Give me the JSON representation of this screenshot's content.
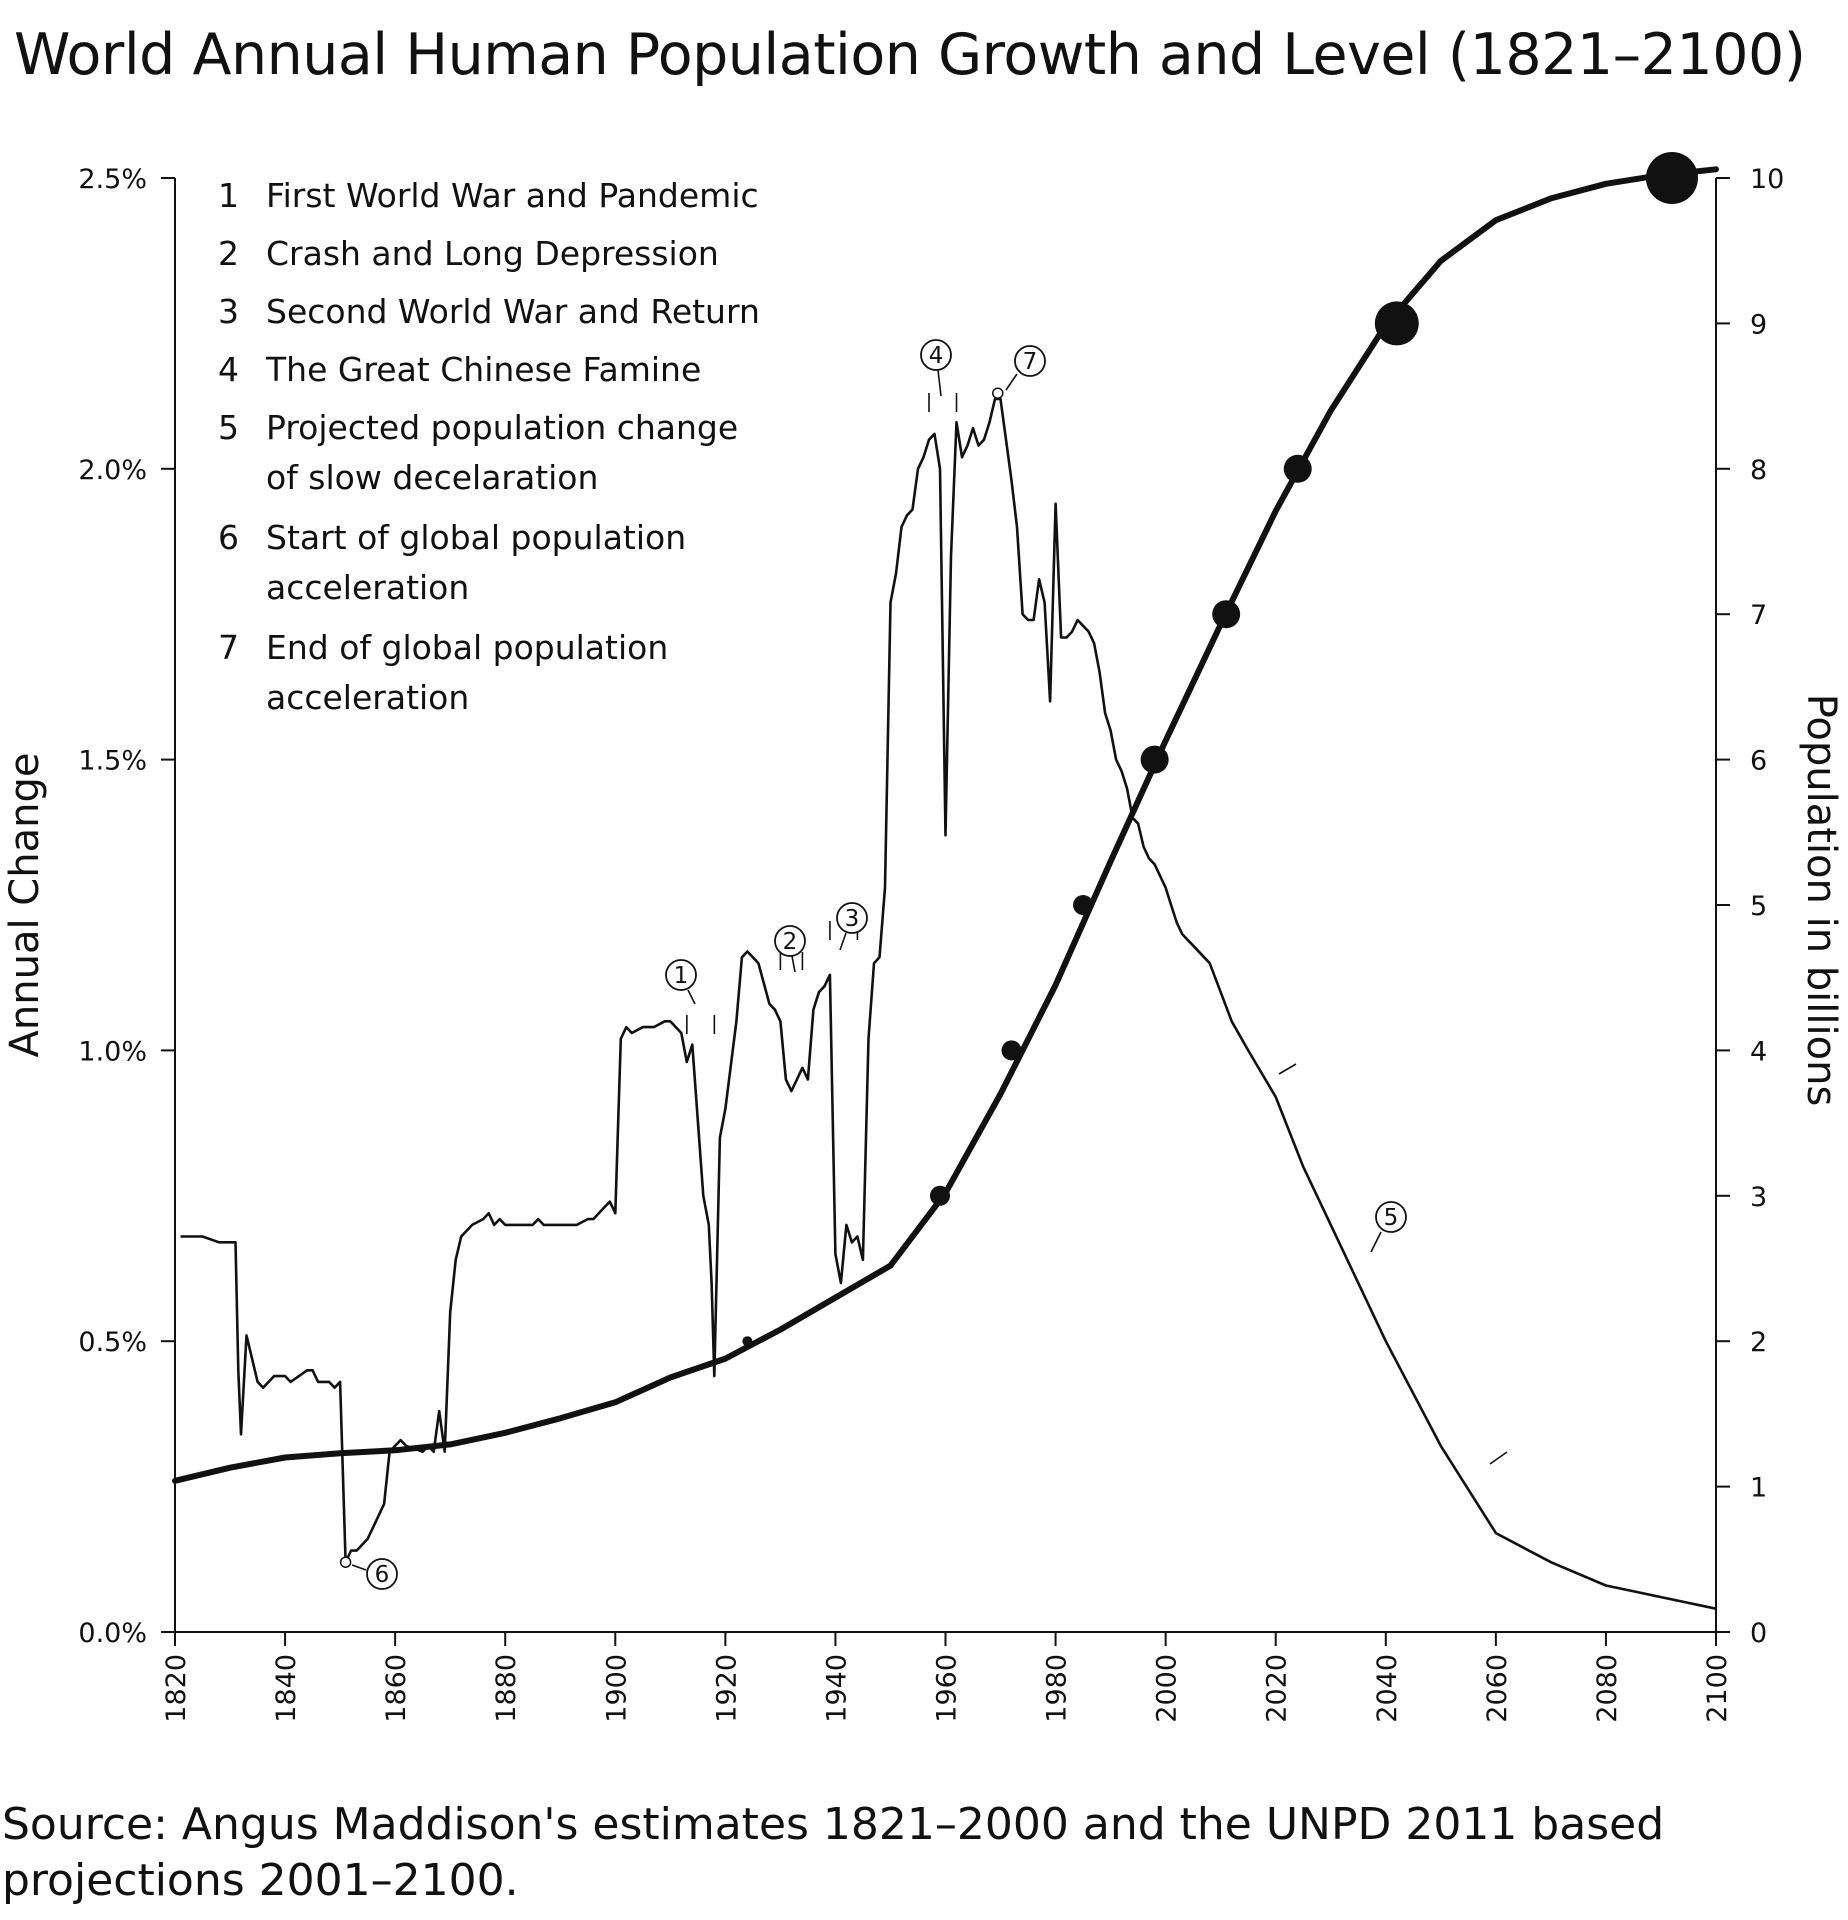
{
  "title": "World Annual Human Population Growth and Level (1821–2100)",
  "source_note": "Source: Angus Maddison's estimates 1821–2000 and the UNPD 2011 based projections 2001–2100.",
  "legend": [
    {
      "num": "1",
      "lines": [
        "First World War and Pandemic"
      ]
    },
    {
      "num": "2",
      "lines": [
        "Crash and Long Depression"
      ]
    },
    {
      "num": "3",
      "lines": [
        "Second World War and Return"
      ]
    },
    {
      "num": "4",
      "lines": [
        "The Great Chinese Famine"
      ]
    },
    {
      "num": "5",
      "lines": [
        "Projected population change",
        "of slow decelaration"
      ]
    },
    {
      "num": "6",
      "lines": [
        "Start of global population",
        "acceleration"
      ]
    },
    {
      "num": "7",
      "lines": [
        "End of global population",
        "acceleration"
      ]
    }
  ],
  "chart_data": {
    "type": "line",
    "title": "World Annual Human Population Growth and Level (1821–2100)",
    "xlabel": "",
    "ylabel": "Annual Change",
    "y2label": "Population in billions",
    "xlim": [
      1820,
      2100
    ],
    "ylim": [
      0,
      2.5
    ],
    "y2lim": [
      0,
      10
    ],
    "grid": false,
    "x_ticks": [
      "1820",
      "1840",
      "1860",
      "1880",
      "1900",
      "1920",
      "1940",
      "1960",
      "1980",
      "2000",
      "2020",
      "2040",
      "2060",
      "2080",
      "2100"
    ],
    "y_ticks": [
      "0.0%",
      "0.5%",
      "1.0%",
      "1.5%",
      "2.0%",
      "2.5%"
    ],
    "y2_ticks": [
      "0",
      "1",
      "2",
      "3",
      "4",
      "5",
      "6",
      "7",
      "8",
      "9",
      "10"
    ],
    "series": [
      {
        "axis": "left",
        "x": [
          1821,
          1824,
          1825,
          1828,
          1830,
          1830.5,
          1831,
          1831.5,
          1832,
          1833,
          1835,
          1836,
          1838,
          1839,
          1840,
          1841,
          1844,
          1845,
          1846,
          1847,
          1848,
          1849,
          1850,
          1851,
          1852,
          1853,
          1855,
          1857,
          1858,
          1859,
          1860,
          1861,
          1862,
          1865,
          1866,
          1867,
          1868,
          1869,
          1870,
          1871,
          1872,
          1874,
          1876,
          1877,
          1878,
          1879,
          1880,
          1885,
          1886,
          1887,
          1890,
          1893,
          1895,
          1896,
          1897,
          1898,
          1899,
          1900,
          1901,
          1902,
          1903,
          1905,
          1907,
          1909,
          1910,
          1911,
          1912,
          1913,
          1914,
          1916,
          1917,
          1917.5,
          1918,
          1919,
          1920,
          1922,
          1923,
          1924,
          1926,
          1928,
          1929,
          1930,
          1931,
          1932,
          1933,
          1934,
          1935,
          1936,
          1937,
          1938,
          1939,
          1940,
          1941,
          1942,
          1943,
          1944,
          1945,
          1946,
          1947,
          1948,
          1949,
          1950,
          1951,
          1952,
          1953,
          1954,
          1955,
          1956,
          1957,
          1958,
          1959,
          1960,
          1961,
          1962,
          1963,
          1964,
          1965,
          1966,
          1967,
          1968,
          1969,
          1970,
          1971,
          1972,
          1973,
          1974,
          1975,
          1976,
          1977,
          1978,
          1979,
          1980,
          1981,
          1982,
          1983,
          1984,
          1985,
          1986,
          1987,
          1988,
          1989,
          1990,
          1991,
          1992,
          1993,
          1994,
          1995,
          1996,
          1997,
          1998,
          1999,
          2000,
          2001,
          2002,
          2003,
          2005,
          2008,
          2010,
          2012,
          2015,
          2020,
          2025,
          2030,
          2040,
          2050,
          2060,
          2070,
          2080,
          2090,
          2100
        ],
        "values": [
          0.68,
          0.68,
          0.68,
          0.67,
          0.67,
          0.67,
          0.67,
          0.45,
          0.34,
          0.51,
          0.43,
          0.42,
          0.44,
          0.44,
          0.44,
          0.43,
          0.45,
          0.45,
          0.43,
          0.43,
          0.43,
          0.42,
          0.43,
          0.12,
          0.14,
          0.14,
          0.16,
          0.2,
          0.22,
          0.31,
          0.32,
          0.33,
          0.32,
          0.31,
          0.32,
          0.31,
          0.38,
          0.31,
          0.55,
          0.64,
          0.68,
          0.7,
          0.71,
          0.72,
          0.7,
          0.71,
          0.7,
          0.7,
          0.71,
          0.7,
          0.7,
          0.7,
          0.71,
          0.71,
          0.72,
          0.73,
          0.74,
          0.72,
          1.02,
          1.04,
          1.03,
          1.04,
          1.04,
          1.05,
          1.05,
          1.04,
          1.03,
          0.98,
          1.01,
          0.75,
          0.7,
          0.6,
          0.44,
          0.85,
          0.9,
          1.05,
          1.16,
          1.17,
          1.15,
          1.08,
          1.07,
          1.05,
          0.95,
          0.93,
          0.95,
          0.97,
          0.95,
          1.07,
          1.1,
          1.11,
          1.13,
          0.65,
          0.6,
          0.7,
          0.67,
          0.68,
          0.64,
          1.02,
          1.15,
          1.16,
          1.28,
          1.77,
          1.82,
          1.9,
          1.92,
          1.93,
          2.0,
          2.02,
          2.05,
          2.06,
          2.0,
          1.37,
          1.85,
          2.08,
          2.02,
          2.04,
          2.07,
          2.04,
          2.05,
          2.08,
          2.12,
          2.12,
          2.05,
          1.98,
          1.9,
          1.75,
          1.74,
          1.74,
          1.81,
          1.77,
          1.6,
          1.94,
          1.71,
          1.71,
          1.72,
          1.74,
          1.73,
          1.72,
          1.7,
          1.65,
          1.58,
          1.55,
          1.5,
          1.48,
          1.45,
          1.4,
          1.39,
          1.35,
          1.33,
          1.32,
          1.3,
          1.28,
          1.25,
          1.22,
          1.2,
          1.18,
          1.15,
          1.1,
          1.05,
          1.0,
          0.92,
          0.8,
          0.7,
          0.5,
          0.32,
          0.17,
          0.12,
          0.08,
          0.06,
          0.04
        ]
      },
      {
        "axis": "right",
        "x": [
          1820,
          1830,
          1840,
          1850,
          1860,
          1870,
          1880,
          1890,
          1900,
          1910,
          1920,
          1930,
          1940,
          1950,
          1960,
          1970,
          1980,
          1990,
          2000,
          2010,
          2020,
          2030,
          2040,
          2050,
          2060,
          2070,
          2080,
          2090,
          2100
        ],
        "values": [
          1.04,
          1.13,
          1.2,
          1.23,
          1.25,
          1.29,
          1.37,
          1.47,
          1.58,
          1.75,
          1.88,
          2.08,
          2.3,
          2.52,
          3.02,
          3.7,
          4.45,
          5.3,
          6.13,
          6.93,
          7.71,
          8.4,
          8.99,
          9.43,
          9.71,
          9.86,
          9.96,
          10.02,
          10.06
        ]
      }
    ],
    "markers": [
      {
        "year": 1924,
        "population": 2,
        "size": "small"
      },
      {
        "year": 1959,
        "population": 3,
        "size": "medium"
      },
      {
        "year": 1972,
        "population": 4,
        "size": "medium"
      },
      {
        "year": 1985,
        "population": 5,
        "size": "medium"
      },
      {
        "year": 1998,
        "population": 6,
        "size": "large"
      },
      {
        "year": 2011,
        "population": 7,
        "size": "large"
      },
      {
        "year": 2024,
        "population": 8,
        "size": "large"
      },
      {
        "year": 2042,
        "population": 9,
        "size": "xlarge"
      },
      {
        "year": 2092,
        "population": 10,
        "size": "xxlarge"
      }
    ],
    "annotations": [
      {
        "label": "1",
        "year": 1914,
        "value": 1.0
      },
      {
        "label": "2",
        "year": 1931,
        "value": 1.12
      },
      {
        "label": "3",
        "year": 1939,
        "value": 1.15
      },
      {
        "label": "4",
        "year": 1959,
        "value": 2.12
      },
      {
        "label": "5",
        "year": 2038,
        "value": 0.67
      },
      {
        "label": "6",
        "year": 1851,
        "value": 0.12
      },
      {
        "label": "7",
        "year": 1969,
        "value": 2.13
      }
    ]
  }
}
